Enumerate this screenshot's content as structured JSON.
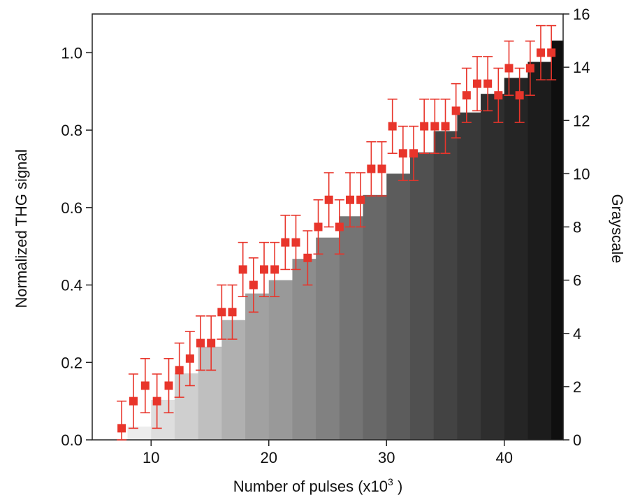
{
  "chart_data": {
    "type": "scatter",
    "xlabel_main": "Number of pulses (x10",
    "xlabel_sup": "3",
    "xlabel_end": " )",
    "ylabel": "Normalized THG signal",
    "ylabel_right": "Grayscale",
    "xlim": [
      5,
      45
    ],
    "ylim": [
      0,
      1.1
    ],
    "ylim_right": [
      0,
      16
    ],
    "x_ticks": [
      10,
      20,
      30,
      40
    ],
    "y_ticks": [
      0.0,
      0.2,
      0.4,
      0.6,
      0.8,
      1.0
    ],
    "y_right_ticks": [
      0,
      2,
      4,
      6,
      8,
      10,
      12,
      14,
      16
    ],
    "grid": false,
    "marker_color": "#e8352b",
    "grayscale_bars": {
      "axis": "right",
      "edges": [
        8,
        10,
        12,
        14,
        16,
        18,
        20,
        22,
        24,
        26,
        28,
        30,
        32,
        34,
        36,
        38,
        40,
        42,
        44,
        45
      ],
      "values": [
        0.5,
        1.5,
        2.5,
        3.5,
        4.5,
        5.5,
        6.0,
        6.8,
        7.6,
        8.4,
        9.2,
        10.0,
        10.8,
        11.6,
        12.3,
        13.0,
        13.6,
        14.2,
        15.0
      ]
    },
    "series": [
      {
        "x": [
          7.5,
          8.5,
          9.5,
          10.5,
          11.5,
          12.4,
          13.3,
          14.2,
          15.1,
          16.0,
          16.9,
          17.8,
          18.7,
          19.6,
          20.5,
          21.4,
          22.3,
          23.3,
          24.2,
          25.1,
          26.0,
          26.9,
          27.8,
          28.7,
          29.6,
          30.5,
          31.4,
          32.3,
          33.2,
          34.1,
          35.0,
          35.9,
          36.8,
          37.7,
          38.6,
          39.5,
          40.4,
          41.3,
          42.2,
          43.1,
          44.0
        ],
        "y": [
          0.03,
          0.1,
          0.14,
          0.1,
          0.14,
          0.18,
          0.21,
          0.25,
          0.25,
          0.33,
          0.33,
          0.44,
          0.4,
          0.44,
          0.44,
          0.51,
          0.51,
          0.47,
          0.55,
          0.62,
          0.55,
          0.62,
          0.62,
          0.7,
          0.7,
          0.81,
          0.74,
          0.74,
          0.81,
          0.81,
          0.81,
          0.85,
          0.89,
          0.92,
          0.92,
          0.89,
          0.96,
          0.89,
          0.96,
          1.0,
          1.0
        ],
        "err": [
          0.07,
          0.07,
          0.07,
          0.07,
          0.07,
          0.07,
          0.07,
          0.07,
          0.07,
          0.07,
          0.07,
          0.07,
          0.07,
          0.07,
          0.07,
          0.07,
          0.07,
          0.07,
          0.07,
          0.07,
          0.07,
          0.07,
          0.07,
          0.07,
          0.07,
          0.07,
          0.07,
          0.07,
          0.07,
          0.07,
          0.07,
          0.07,
          0.07,
          0.07,
          0.07,
          0.07,
          0.07,
          0.07,
          0.07,
          0.07,
          0.07
        ]
      }
    ]
  }
}
